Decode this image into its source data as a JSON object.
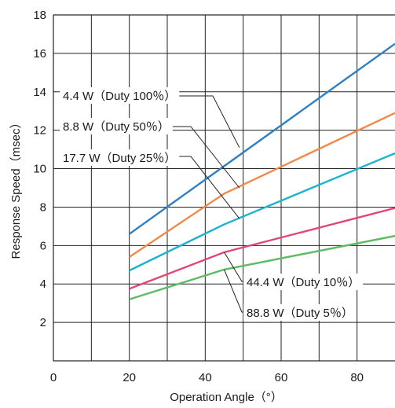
{
  "chart_data": {
    "type": "line",
    "xlabel": "Operation Angle（°）",
    "ylabel": "Response Speed（msec）",
    "xlim": [
      0,
      90
    ],
    "ylim": [
      0,
      18
    ],
    "xticks": [
      0,
      20,
      40,
      60,
      80
    ],
    "yticks": [
      2,
      4,
      6,
      8,
      10,
      12,
      14,
      16,
      18
    ],
    "grid": true,
    "series": [
      {
        "name": "4.4 W（Duty 100％）",
        "color": "#2f7fc1",
        "x": [
          20,
          90
        ],
        "y": [
          6.6,
          16.5
        ],
        "callout_anchor": [
          49,
          11.1
        ]
      },
      {
        "name": "8.8 W（Duty 50％）",
        "color": "#f08a4b",
        "x": [
          20,
          45,
          90
        ],
        "y": [
          5.4,
          8.7,
          12.9
        ],
        "callout_anchor": [
          49,
          9.0
        ]
      },
      {
        "name": "17.7 W（Duty 25％）",
        "color": "#1bb3d0",
        "x": [
          20,
          45,
          90
        ],
        "y": [
          4.7,
          7.1,
          10.8
        ],
        "callout_anchor": [
          49,
          7.4
        ]
      },
      {
        "name": "44.4 W（Duty 10％）",
        "color": "#e0457b",
        "x": [
          20,
          45,
          90
        ],
        "y": [
          3.75,
          5.65,
          7.95
        ],
        "callout_anchor": [
          45,
          5.65
        ]
      },
      {
        "name": "88.8 W（Duty 5％）",
        "color": "#5dbb63",
        "x": [
          20,
          45,
          90
        ],
        "y": [
          3.2,
          4.75,
          6.5
        ],
        "callout_anchor": [
          45,
          4.75
        ]
      }
    ]
  }
}
